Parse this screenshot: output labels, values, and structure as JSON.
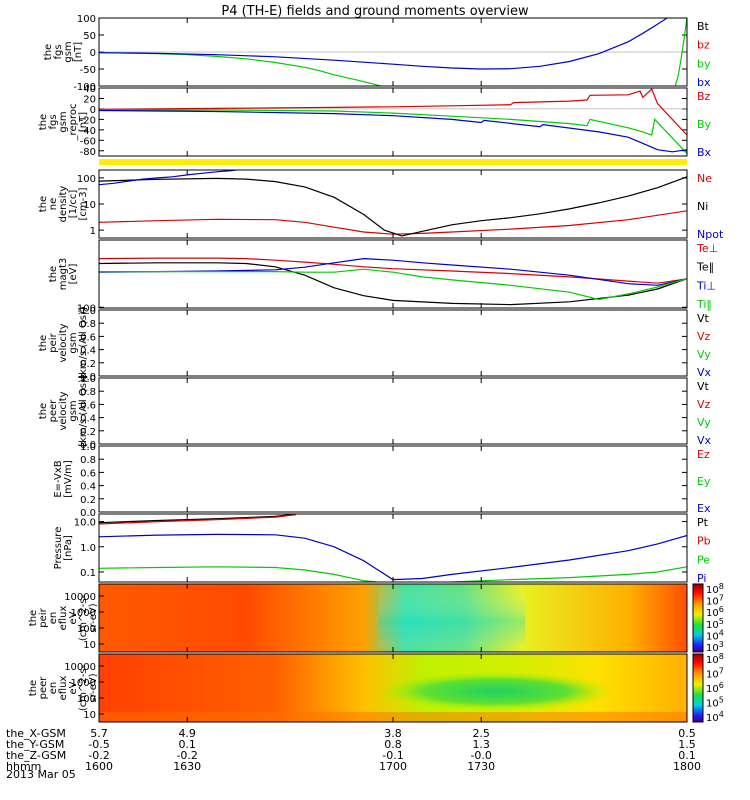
{
  "title": "P4 (TH-E) fields and ground moments overview",
  "colors": {
    "black": "#000000",
    "red": "#dd0000",
    "green": "#00cc00",
    "blue": "#0000cc",
    "yellow": "#ffee00"
  },
  "chart_data": [
    {
      "type": "line",
      "ylabel": [
        "the",
        "fgs",
        "gsm",
        "[nT]"
      ],
      "ylim": [
        -100,
        100
      ],
      "yticks": [
        "100",
        "50",
        "0",
        "-50",
        "-100"
      ],
      "yticks_v": [
        100,
        50,
        0,
        -50,
        -100
      ],
      "legend": [
        {
          "label": "Bt",
          "color": "black"
        },
        {
          "label": "bz",
          "color": "red"
        },
        {
          "label": "by",
          "color": "green"
        },
        {
          "label": "bx",
          "color": "blue"
        }
      ],
      "series": [
        {
          "name": "by",
          "color": "green",
          "x": [
            1600,
            1610,
            1620,
            1630,
            1640,
            1650,
            1660,
            1670,
            1675,
            1680,
            1688,
            1694,
            1700
          ],
          "y": [
            -2,
            -3,
            -5,
            -8,
            -13,
            -20,
            -31,
            -45,
            -55,
            -67,
            -83,
            -96,
            -110
          ]
        },
        {
          "name": "bx",
          "color": "blue",
          "x": [
            1600,
            1620,
            1640,
            1660,
            1680,
            1700,
            1710,
            1720,
            1730,
            1740,
            1750,
            1760,
            1770,
            1780,
            1785,
            1790,
            1795
          ],
          "y": [
            -2,
            -4,
            -8,
            -14,
            -24,
            -36,
            -42,
            -47,
            -50,
            -49,
            -42,
            -28,
            -5,
            30,
            55,
            82,
            110
          ]
        },
        {
          "name": "by",
          "color": "green",
          "x": [
            1796,
            1797,
            1798,
            1799,
            1800
          ],
          "y": [
            -100,
            -70,
            -20,
            40,
            100
          ]
        }
      ]
    },
    {
      "type": "line",
      "ylabel": [
        "the",
        "fgs",
        "gsm",
        "_reproc",
        "[nT]"
      ],
      "ylim": [
        -90,
        40
      ],
      "yticks": [
        "40",
        "20",
        "0",
        "-20",
        "-40",
        "-60",
        "-80"
      ],
      "yticks_v": [
        40,
        20,
        0,
        -20,
        -40,
        -60,
        -80
      ],
      "legend": [
        {
          "label": "Bz",
          "color": "red"
        },
        {
          "label": "By",
          "color": "green"
        },
        {
          "label": "Bx",
          "color": "blue"
        }
      ],
      "series": [
        {
          "name": "Bz",
          "color": "red",
          "x": [
            1600,
            1640,
            1680,
            1700,
            1720,
            1740,
            1741,
            1760,
            1766,
            1767,
            1780,
            1784,
            1785,
            1788,
            1790,
            1800
          ],
          "y": [
            -1,
            1,
            3,
            4,
            6,
            8,
            12,
            15,
            17,
            26,
            27,
            34,
            22,
            38,
            10,
            -50
          ]
        },
        {
          "name": "By",
          "color": "green",
          "x": [
            1600,
            1640,
            1680,
            1700,
            1720,
            1740,
            1760,
            1766,
            1767,
            1780,
            1785,
            1788,
            1789,
            1800
          ],
          "y": [
            -2,
            -2,
            -4,
            -8,
            -14,
            -20,
            -28,
            -32,
            -20,
            -36,
            -44,
            -50,
            -20,
            -85
          ]
        },
        {
          "name": "Bx",
          "color": "blue",
          "x": [
            1600,
            1640,
            1680,
            1700,
            1720,
            1730,
            1731,
            1750,
            1751,
            1770,
            1780,
            1785,
            1790,
            1795,
            1800
          ],
          "y": [
            -3,
            -5,
            -9,
            -13,
            -20,
            -26,
            -22,
            -34,
            -30,
            -44,
            -54,
            -66,
            -78,
            -82,
            -78
          ]
        }
      ]
    },
    {
      "type": "line",
      "scale": "log",
      "ylabel": [
        "the",
        "ne",
        "density",
        "[1/cc]",
        "[cm-3]"
      ],
      "ylim": [
        0.5,
        200
      ],
      "yticks": [
        "100",
        "10",
        "1"
      ],
      "yticks_v": [
        100,
        10,
        1
      ],
      "legend": [
        {
          "label": "Ne",
          "color": "red"
        },
        {
          "label": "Ni",
          "color": "black"
        },
        {
          "label": "Npot",
          "color": "blue"
        }
      ],
      "series": [
        {
          "name": "Ne",
          "color": "red",
          "x": [
            1600,
            1620,
            1640,
            1660,
            1670,
            1680,
            1690,
            1700,
            1710,
            1720,
            1740,
            1760,
            1780,
            1800
          ],
          "y": [
            2.0,
            2.3,
            2.6,
            2.5,
            2.0,
            1.3,
            0.85,
            0.7,
            0.75,
            0.85,
            1.1,
            1.5,
            2.5,
            5.5
          ]
        },
        {
          "name": "Ni",
          "color": "black",
          "x": [
            1600,
            1620,
            1640,
            1650,
            1660,
            1670,
            1680,
            1690,
            1697,
            1703,
            1710,
            1720,
            1730,
            1740,
            1750,
            1760,
            1770,
            1780,
            1790,
            1800
          ],
          "y": [
            75,
            88,
            95,
            90,
            72,
            45,
            18,
            4.0,
            1.0,
            0.6,
            0.9,
            1.6,
            2.3,
            3.0,
            4.2,
            6.5,
            11,
            20,
            42,
            110
          ]
        },
        {
          "name": "Npot",
          "color": "blue",
          "x": [
            1600,
            1605,
            1610,
            1615,
            1620,
            1625,
            1630,
            1635,
            1640,
            1645,
            1648
          ],
          "y": [
            55,
            62,
            75,
            90,
            100,
            110,
            130,
            150,
            170,
            190,
            210
          ]
        }
      ]
    },
    {
      "type": "line",
      "scale": "log",
      "ylabel": [
        "the",
        "magt3",
        "[eV]"
      ],
      "ylim": [
        95,
        10000
      ],
      "yticks": [
        "100"
      ],
      "yticks_v": [
        100
      ],
      "legend": [
        {
          "label": "Te⊥",
          "color": "red"
        },
        {
          "label": "Te‖",
          "color": "black"
        },
        {
          "label": "Ti⊥",
          "color": "blue"
        },
        {
          "label": "Ti‖",
          "color": "green"
        }
      ],
      "series": [
        {
          "name": "Te⊥",
          "color": "red",
          "x": [
            1600,
            1620,
            1640,
            1650,
            1660,
            1670,
            1680,
            1690,
            1700,
            1720,
            1740,
            1760,
            1780,
            1790,
            1800
          ],
          "y": [
            2800,
            2900,
            2900,
            2800,
            2500,
            2200,
            1900,
            1600,
            1400,
            1200,
            1000,
            800,
            600,
            520,
            700
          ]
        },
        {
          "name": "Te‖",
          "color": "black",
          "x": [
            1600,
            1620,
            1640,
            1650,
            1660,
            1670,
            1680,
            1690,
            1700,
            1720,
            1740,
            1760,
            1780,
            1790,
            1800
          ],
          "y": [
            2000,
            2100,
            2100,
            2000,
            1600,
            900,
            380,
            220,
            160,
            130,
            120,
            145,
            230,
            350,
            700
          ]
        },
        {
          "name": "Ti⊥",
          "color": "blue",
          "x": [
            1600,
            1620,
            1640,
            1660,
            1670,
            1680,
            1690,
            1700,
            1710,
            1720,
            1740,
            1760,
            1780,
            1790,
            1800
          ],
          "y": [
            1100,
            1150,
            1200,
            1300,
            1550,
            2100,
            2800,
            2500,
            2100,
            1800,
            1350,
            900,
            500,
            450,
            700
          ]
        },
        {
          "name": "Ti‖",
          "color": "green",
          "x": [
            1600,
            1620,
            1640,
            1660,
            1670,
            1680,
            1690,
            1700,
            1710,
            1720,
            1740,
            1760,
            1770,
            1780,
            1790,
            1800
          ],
          "y": [
            1150,
            1150,
            1150,
            1150,
            1100,
            1100,
            1350,
            1100,
            800,
            650,
            450,
            280,
            170,
            250,
            400,
            700
          ]
        }
      ]
    },
    {
      "type": "line",
      "ylabel": [
        "the",
        "peir",
        "velocity",
        "gsm",
        "[km/s (All Qs)]"
      ],
      "ylim": [
        0,
        1
      ],
      "yticks": [
        "1.0",
        "0.8",
        "0.6",
        "0.4",
        "0.2",
        "0.0"
      ],
      "yticks_v": [
        1,
        0.8,
        0.6,
        0.4,
        0.2,
        0
      ],
      "legend": [
        {
          "label": "Vt",
          "color": "black"
        },
        {
          "label": "Vz",
          "color": "red"
        },
        {
          "label": "Vy",
          "color": "green"
        },
        {
          "label": "Vx",
          "color": "blue"
        }
      ],
      "series": []
    },
    {
      "type": "line",
      "ylabel": [
        "the",
        "peer",
        "velocity",
        "gsm",
        "[km/s (All Qs)]"
      ],
      "ylim": [
        0,
        1
      ],
      "yticks": [
        "1.0",
        "0.8",
        "0.6",
        "0.4",
        "0.2",
        "0.0"
      ],
      "yticks_v": [
        1,
        0.8,
        0.6,
        0.4,
        0.2,
        0
      ],
      "legend": [
        {
          "label": "Vt",
          "color": "black"
        },
        {
          "label": "Vz",
          "color": "red"
        },
        {
          "label": "Vy",
          "color": "green"
        },
        {
          "label": "Vx",
          "color": "blue"
        }
      ],
      "series": []
    },
    {
      "type": "line",
      "ylabel": [
        "E=-VxB",
        "[mV/m]"
      ],
      "ylim": [
        0,
        1
      ],
      "yticks": [
        "1.0",
        "0.8",
        "0.6",
        "0.4",
        "0.2",
        "0.0"
      ],
      "yticks_v": [
        1,
        0.8,
        0.6,
        0.4,
        0.2,
        0
      ],
      "legend": [
        {
          "label": "Ez",
          "color": "red"
        },
        {
          "label": "Ey",
          "color": "green"
        },
        {
          "label": "Ex",
          "color": "blue"
        }
      ],
      "series": []
    },
    {
      "type": "line",
      "scale": "log",
      "ylabel": [
        "Pressure",
        "[nPa]"
      ],
      "ylim": [
        0.04,
        20
      ],
      "yticks": [
        "10.0",
        "1.0",
        "0.1"
      ],
      "yticks_v": [
        10,
        1,
        0.1
      ],
      "legend": [
        {
          "label": "Pt",
          "color": "black"
        },
        {
          "label": "Pb",
          "color": "red"
        },
        {
          "label": "Pe",
          "color": "green"
        },
        {
          "label": "Pi",
          "color": "blue"
        }
      ],
      "series": [
        {
          "name": "Pt",
          "color": "black",
          "x": [
            1600,
            1620,
            1640,
            1660,
            1667
          ],
          "y": [
            9,
            11,
            13,
            16,
            20
          ]
        },
        {
          "name": "Pb",
          "color": "red",
          "x": [
            1600,
            1620,
            1640,
            1660,
            1667
          ],
          "y": [
            8,
            10,
            12,
            15,
            19
          ]
        },
        {
          "name": "Pi",
          "color": "blue",
          "x": [
            1600,
            1620,
            1640,
            1660,
            1670,
            1680,
            1690,
            1700,
            1710,
            1720,
            1740,
            1760,
            1780,
            1790,
            1800
          ],
          "y": [
            2.5,
            2.9,
            3.1,
            3.0,
            2.2,
            1.0,
            0.28,
            0.05,
            0.055,
            0.08,
            0.15,
            0.3,
            0.7,
            1.3,
            2.8
          ]
        },
        {
          "name": "Pe",
          "color": "green",
          "x": [
            1600,
            1620,
            1640,
            1660,
            1670,
            1680,
            1690,
            1700,
            1710,
            1720,
            1740,
            1760,
            1780,
            1790,
            1800
          ],
          "y": [
            0.14,
            0.15,
            0.16,
            0.15,
            0.12,
            0.08,
            0.045,
            0.035,
            0.035,
            0.04,
            0.05,
            0.06,
            0.08,
            0.1,
            0.16
          ]
        }
      ]
    },
    {
      "type": "heatmap",
      "ylabel": [
        "the",
        "peir",
        "en",
        "eflux",
        "eV",
        "(cm^2-s-",
        "sr-eV)"
      ],
      "yticks": [
        "10000",
        "1000",
        "100",
        "10"
      ],
      "colorbar": {
        "labels": [
          "10^8",
          "10^7",
          "10^6",
          "10^5",
          "10^4",
          "10^3"
        ]
      }
    },
    {
      "type": "heatmap",
      "ylabel": [
        "the",
        "peer",
        "en",
        "eflux",
        "eV",
        "(cm^2-s-",
        "sr-eV)"
      ],
      "yticks": [
        "10000",
        "1000",
        "100",
        "10"
      ],
      "colorbar": {
        "labels": [
          "10^8",
          "10^7",
          "10^6",
          "10^5",
          "10^4"
        ]
      }
    }
  ],
  "xaxis": {
    "range": [
      1600,
      1800
    ],
    "ticks_v": [
      1600,
      1630,
      1700,
      1730,
      1800
    ],
    "rows": [
      {
        "label": "the_X-GSM",
        "values": [
          "5.7",
          "4.9",
          "3.8",
          "2.5",
          "0.5"
        ]
      },
      {
        "label": "the_Y-GSM",
        "values": [
          "-0.5",
          "0.1",
          "0.8",
          "1.3",
          "1.5"
        ]
      },
      {
        "label": "the_Z-GSM",
        "values": [
          "-0.2",
          "-0.2",
          "-0.1",
          "-0.0",
          "0.1"
        ]
      },
      {
        "label": "hhmm",
        "values": [
          "1600",
          "1630",
          "1700",
          "1730",
          "1800"
        ]
      }
    ],
    "date": "2013 Mar 05"
  }
}
